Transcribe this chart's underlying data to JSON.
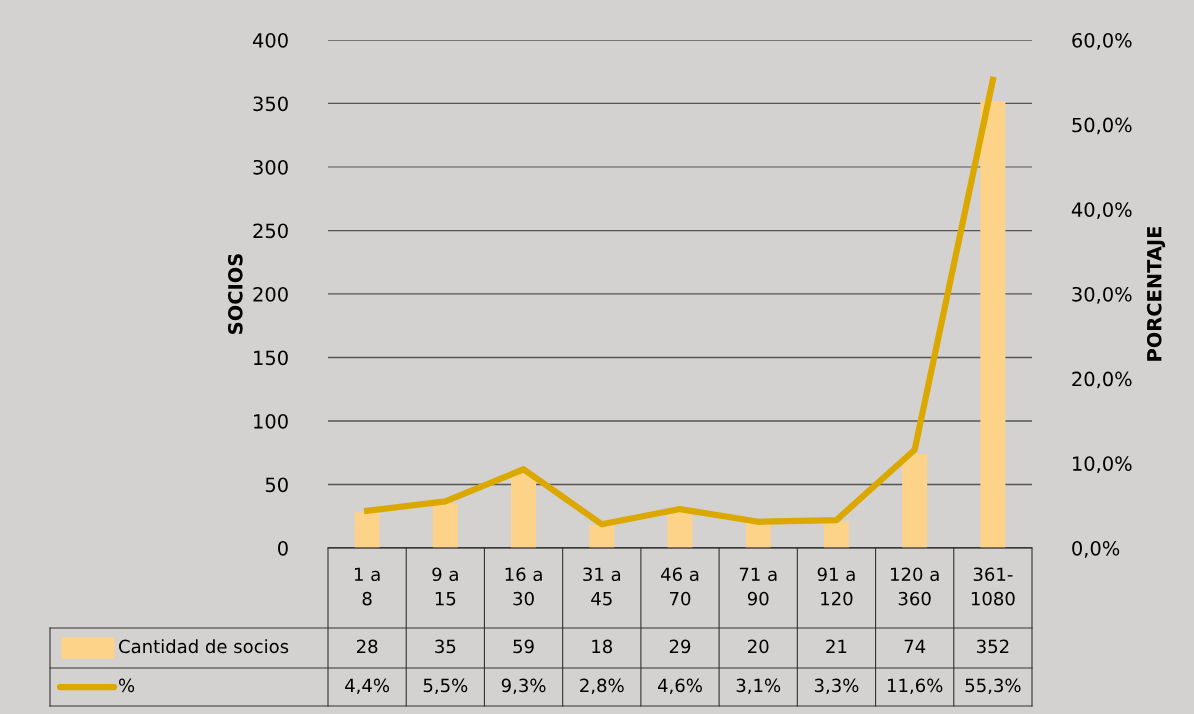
{
  "chart_data": {
    "type": "bar",
    "categories": [
      "1 a 8",
      "9 a 15",
      "16 a 30",
      "31 a 45",
      "46 a 70",
      "71 a 90",
      "91 a 120",
      "120 a 360",
      "361-1080"
    ],
    "series": [
      {
        "name": "Cantidad de socios",
        "color": "#fdd38a",
        "values": [
          28,
          35,
          59,
          18,
          29,
          20,
          21,
          74,
          352
        ],
        "value_labels": [
          "28",
          "35",
          "59",
          "18",
          "29",
          "20",
          "21",
          "74",
          "352"
        ]
      },
      {
        "name": "%",
        "type": "line",
        "axis": "y2",
        "color": "#dba800",
        "values": [
          4.4,
          5.5,
          9.3,
          2.8,
          4.6,
          3.1,
          3.3,
          11.6,
          55.3
        ],
        "value_labels": [
          "4,4%",
          "5,5%",
          "9,3%",
          "2,8%",
          "4,6%",
          "3,1%",
          "3,3%",
          "11,6%",
          "55,3%"
        ]
      }
    ],
    "ylabel": "SOCIOS",
    "y2label": "PORCENTAJE",
    "ylim": [
      0,
      400
    ],
    "yticks": [
      0,
      50,
      100,
      150,
      200,
      250,
      300,
      350,
      400
    ],
    "y2lim": [
      0,
      60
    ],
    "y2ticks": [
      {
        "value": 0,
        "label": "0,0%"
      },
      {
        "value": 10,
        "label": "10,0%"
      },
      {
        "value": 20,
        "label": "20,0%"
      },
      {
        "value": 30,
        "label": "30,0%"
      },
      {
        "value": 40,
        "label": "40,0%"
      },
      {
        "value": 50,
        "label": "50,0%"
      },
      {
        "value": 60,
        "label": "60,0%"
      }
    ],
    "grid": "y",
    "legend": "bottom",
    "line_style": "solid",
    "marker": "none"
  }
}
